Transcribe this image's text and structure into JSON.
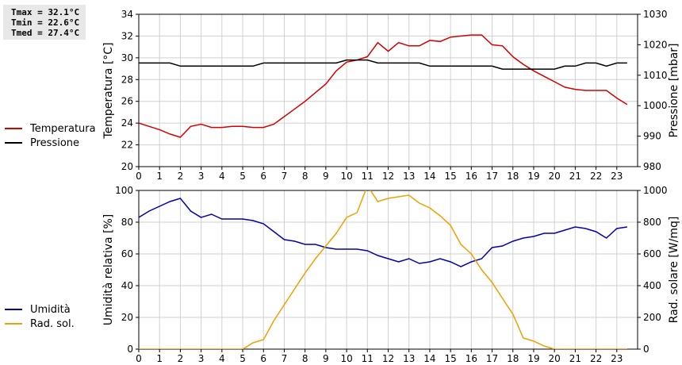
{
  "stats": {
    "tmax": "Tmax = 32.1°C",
    "tmin": "Tmin = 22.6°C",
    "tmed": "Tmed = 27.4°C"
  },
  "legend": {
    "top": [
      {
        "label": "Temperatura",
        "color": "#d40000"
      },
      {
        "label": "Pressione",
        "color": "#000000"
      }
    ],
    "bottom": [
      {
        "label": "Umidità",
        "color": "#0000b4"
      },
      {
        "label": "Rad. sol.",
        "color": "#f0a000"
      }
    ]
  },
  "chart_data": [
    {
      "type": "line",
      "xlim": [
        0,
        24
      ],
      "x_ticks": [
        0,
        1,
        2,
        3,
        4,
        5,
        6,
        7,
        8,
        9,
        10,
        11,
        12,
        13,
        14,
        15,
        16,
        17,
        18,
        19,
        20,
        21,
        22,
        23
      ],
      "grid": true,
      "left_axis": {
        "label": "Temperatura [°C]",
        "ylim": [
          20,
          34
        ],
        "ticks": [
          20,
          22,
          24,
          26,
          28,
          30,
          32,
          34
        ]
      },
      "right_axis": {
        "label": "Pressione [mbar]",
        "ylim": [
          980,
          1030
        ],
        "ticks": [
          980,
          990,
          1000,
          1010,
          1020,
          1030
        ]
      },
      "series": [
        {
          "name": "Temperatura",
          "axis": "left",
          "color": "#d40000",
          "x": [
            0,
            0.5,
            1,
            1.5,
            2,
            2.5,
            3,
            3.5,
            4,
            4.5,
            5,
            5.5,
            6,
            6.5,
            7,
            7.5,
            8,
            8.5,
            9,
            9.5,
            10,
            10.5,
            11,
            11.5,
            12,
            12.5,
            13,
            13.5,
            14,
            14.5,
            15,
            15.5,
            16,
            16.5,
            17,
            17.5,
            18,
            18.5,
            19,
            19.5,
            20,
            20.5,
            21,
            21.5,
            22,
            22.5,
            23,
            23.5
          ],
          "values": [
            24.0,
            23.7,
            23.4,
            23.0,
            22.7,
            23.7,
            23.9,
            23.6,
            23.6,
            23.7,
            23.7,
            23.6,
            23.6,
            23.9,
            24.6,
            25.3,
            26.0,
            26.8,
            27.6,
            28.8,
            29.6,
            29.8,
            30.1,
            31.4,
            30.6,
            31.4,
            31.1,
            31.1,
            31.6,
            31.5,
            31.9,
            32.0,
            32.1,
            32.1,
            31.2,
            31.1,
            30.1,
            29.4,
            28.8,
            28.3,
            27.8,
            27.3,
            27.1,
            27.0,
            27.0,
            27.0,
            26.3,
            25.7
          ]
        },
        {
          "name": "Pressione",
          "axis": "right",
          "color": "#000000",
          "x": [
            0,
            0.5,
            1,
            1.5,
            2,
            2.5,
            3,
            3.5,
            4,
            4.5,
            5,
            5.5,
            6,
            6.5,
            7,
            7.5,
            8,
            8.5,
            9,
            9.5,
            10,
            10.5,
            11,
            11.5,
            12,
            12.5,
            13,
            13.5,
            14,
            14.5,
            15,
            15.5,
            16,
            16.5,
            17,
            17.5,
            18,
            18.5,
            19,
            19.5,
            20,
            20.5,
            21,
            21.5,
            22,
            22.5,
            23,
            23.5
          ],
          "values": [
            1014,
            1014,
            1014,
            1014,
            1013,
            1013,
            1013,
            1013,
            1013,
            1013,
            1013,
            1013,
            1014,
            1014,
            1014,
            1014,
            1014,
            1014,
            1014,
            1014,
            1015,
            1015,
            1015,
            1014,
            1014,
            1014,
            1014,
            1014,
            1013,
            1013,
            1013,
            1013,
            1013,
            1013,
            1013,
            1012,
            1012,
            1012,
            1012,
            1012,
            1012,
            1013,
            1013,
            1014,
            1014,
            1013,
            1014,
            1014
          ]
        }
      ]
    },
    {
      "type": "line",
      "xlim": [
        0,
        24
      ],
      "x_ticks": [
        0,
        1,
        2,
        3,
        4,
        5,
        6,
        7,
        8,
        9,
        10,
        11,
        12,
        13,
        14,
        15,
        16,
        17,
        18,
        19,
        20,
        21,
        22,
        23
      ],
      "grid": true,
      "left_axis": {
        "label": "Umidità relativa [%]",
        "ylim": [
          0,
          100
        ],
        "ticks": [
          0,
          20,
          40,
          60,
          80,
          100
        ]
      },
      "right_axis": {
        "label": "Rad. solare [W/mq]",
        "ylim": [
          0,
          1000
        ],
        "ticks": [
          0,
          200,
          400,
          600,
          800,
          1000
        ]
      },
      "series": [
        {
          "name": "Umidità",
          "axis": "left",
          "color": "#0000b4",
          "x": [
            0,
            0.5,
            1,
            1.5,
            2,
            2.5,
            3,
            3.5,
            4,
            4.5,
            5,
            5.5,
            6,
            6.5,
            7,
            7.5,
            8,
            8.5,
            9,
            9.5,
            10,
            10.5,
            11,
            11.5,
            12,
            12.5,
            13,
            13.5,
            14,
            14.5,
            15,
            15.5,
            16,
            16.5,
            17,
            17.5,
            18,
            18.5,
            19,
            19.5,
            20,
            20.5,
            21,
            21.5,
            22,
            22.5,
            23,
            23.5
          ],
          "values": [
            83,
            87,
            90,
            93,
            95,
            87,
            83,
            85,
            82,
            82,
            82,
            81,
            79,
            74,
            69,
            68,
            66,
            66,
            64,
            63,
            63,
            63,
            62,
            59,
            57,
            55,
            57,
            54,
            55,
            57,
            55,
            52,
            55,
            57,
            64,
            65,
            68,
            70,
            71,
            73,
            73,
            75,
            77,
            76,
            74,
            70,
            76,
            77
          ]
        },
        {
          "name": "Rad. sol.",
          "axis": "right",
          "color": "#f0a000",
          "x": [
            0,
            0.5,
            1,
            1.5,
            2,
            2.5,
            3,
            3.5,
            4,
            4.5,
            5,
            5.5,
            6,
            6.5,
            7,
            7.5,
            8,
            8.5,
            9,
            9.5,
            10,
            10.5,
            11,
            11.5,
            12,
            12.5,
            13,
            13.5,
            14,
            14.5,
            15,
            15.5,
            16,
            16.5,
            17,
            17.5,
            18,
            18.5,
            19,
            19.5,
            20,
            20.5,
            21,
            21.5,
            22,
            22.5,
            23,
            23.5
          ],
          "values": [
            0,
            0,
            0,
            0,
            0,
            0,
            0,
            0,
            0,
            0,
            0,
            40,
            60,
            180,
            280,
            380,
            480,
            570,
            650,
            730,
            830,
            860,
            1030,
            930,
            950,
            960,
            970,
            920,
            890,
            840,
            780,
            660,
            600,
            500,
            420,
            320,
            220,
            70,
            50,
            20,
            0,
            0,
            0,
            0,
            0,
            0,
            0,
            0
          ]
        }
      ]
    }
  ]
}
